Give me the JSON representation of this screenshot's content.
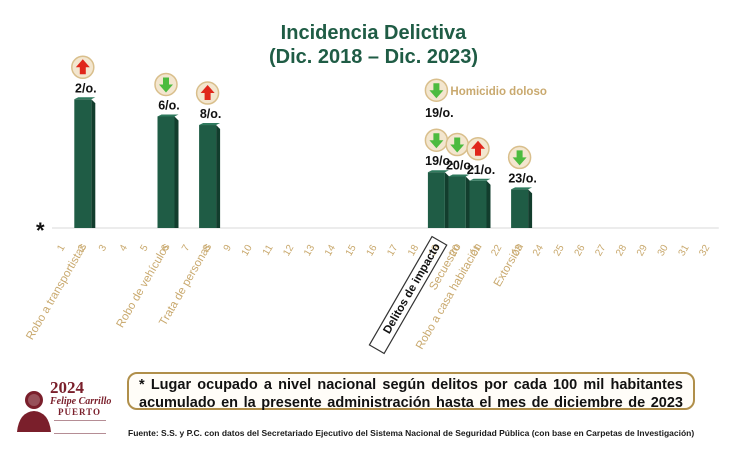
{
  "header": {
    "title": "Incidencia Delictiva",
    "subtitle": "(Dic. 2018 – Dic. 2023)"
  },
  "chart_data": {
    "type": "bar",
    "title": "Incidencia Delictiva",
    "subtitle": "(Dic. 2018 – Dic. 2023)",
    "x_ticks": [
      "1",
      "2",
      "3",
      "4",
      "5",
      "6",
      "7",
      "8",
      "9",
      "10",
      "11",
      "12",
      "13",
      "14",
      "15",
      "16",
      "17",
      "18",
      "19",
      "20",
      "21",
      "22",
      "23",
      "24",
      "25",
      "26",
      "27",
      "28",
      "29",
      "30",
      "31",
      "32"
    ],
    "axis_marker": "*",
    "ylim": [
      0,
      32
    ],
    "bars": [
      {
        "position": 2,
        "rank": 2,
        "rank_label": "2/o.",
        "trend": "up",
        "category": "Robo a transportistas"
      },
      {
        "position": 6,
        "rank": 6,
        "rank_label": "6/o.",
        "trend": "down",
        "category": "Robo de vehículos"
      },
      {
        "position": 8,
        "rank": 8,
        "rank_label": "8/o.",
        "trend": "up",
        "category": "Trata de personas"
      },
      {
        "position": 19,
        "rank": 19,
        "rank_label": "19/o.",
        "trend": "down",
        "category": "Delitos de impacto",
        "boxed": true
      },
      {
        "position": 20,
        "rank": 20,
        "rank_label": "20/o.",
        "trend": "down",
        "category": "Secuestro"
      },
      {
        "position": 21,
        "rank": 21,
        "rank_label": "21/o.",
        "trend": "up",
        "category": "Robo a casa habitación"
      },
      {
        "position": 23,
        "rank": 23,
        "rank_label": "23/o.",
        "trend": "down",
        "category": "Extorsión"
      }
    ],
    "marker_only": [
      {
        "position": 19,
        "rank": 19,
        "rank_label": "19/o.",
        "trend": "down",
        "annotation": "Homicidio doloso"
      }
    ],
    "colors": {
      "bar": "#1f5c45",
      "bar_side": "#123d2d",
      "label": "#c9a96e",
      "up_arrow": "#e0261b",
      "down_arrow": "#4cbb3f"
    }
  },
  "note": {
    "text": "* Lugar ocupado a nivel nacional según delitos por cada 100 mil habitantes acumulado en la presente administración hasta el mes de diciembre de 2023"
  },
  "source": {
    "text": "Fuente: S.S. y P.C. con datos del Secretariado Ejecutivo del Sistema Nacional de Seguridad Pública (con base en Carpetas de Investigación)"
  },
  "logo": {
    "year": "2024",
    "name": "Felipe Carrillo",
    "place": "PUERTO"
  }
}
